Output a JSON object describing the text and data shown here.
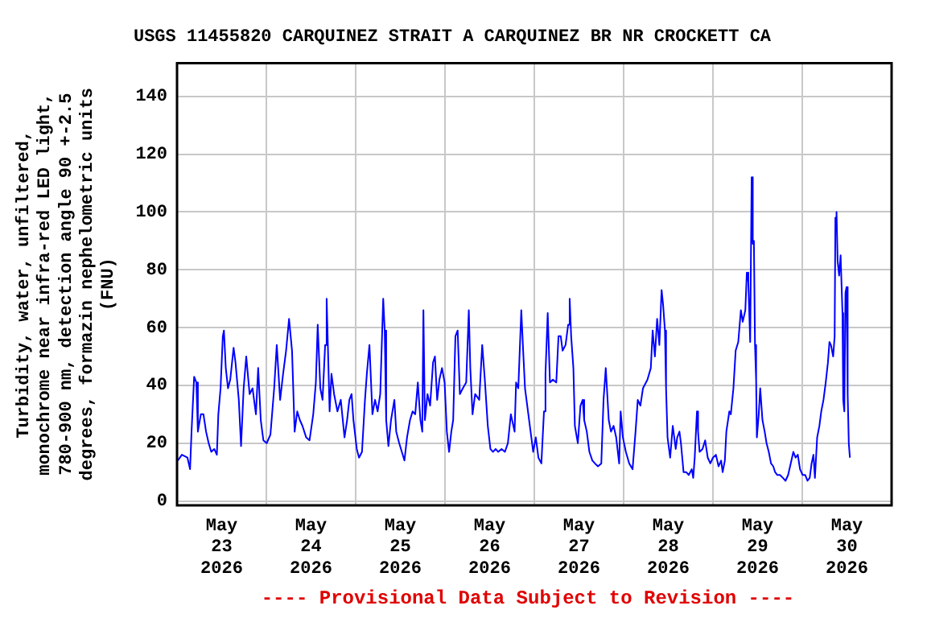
{
  "chart_data": {
    "type": "line",
    "title": "USGS 11455820 CARQUINEZ STRAIT A CARQUINEZ BR NR CROCKETT CA",
    "ylabel": "Turbidity, water, unfiltered, monochrome near infra-red LED light, 780-900 nm, detection angle 90 +-2.5 degrees, formazin nephelometric units (FNU)",
    "xlim": [
      "2026-05-23T00:00",
      "2026-05-31T00:00"
    ],
    "xticks": [
      {
        "value": "2026-05-23T00:00",
        "label": null
      },
      {
        "value": "2026-05-23T12:00",
        "label": "May 23 2026"
      },
      {
        "value": "2026-05-24T00:00",
        "label": null
      },
      {
        "value": "2026-05-24T12:00",
        "label": "May 24 2026"
      },
      {
        "value": "2026-05-25T00:00",
        "label": null
      },
      {
        "value": "2026-05-25T12:00",
        "label": "May 25 2026"
      },
      {
        "value": "2026-05-26T00:00",
        "label": null
      },
      {
        "value": "2026-05-26T12:00",
        "label": "May 26 2026"
      },
      {
        "value": "2026-05-27T00:00",
        "label": null
      },
      {
        "value": "2026-05-27T12:00",
        "label": "May 27 2026"
      },
      {
        "value": "2026-05-28T00:00",
        "label": null
      },
      {
        "value": "2026-05-28T12:00",
        "label": "May 28 2026"
      },
      {
        "value": "2026-05-29T00:00",
        "label": null
      },
      {
        "value": "2026-05-29T12:00",
        "label": "May 29 2026"
      },
      {
        "value": "2026-05-30T00:00",
        "label": null
      },
      {
        "value": "2026-05-30T12:00",
        "label": "May 30 2026"
      },
      {
        "value": "2026-05-31T00:00",
        "label": null
      }
    ],
    "ylim": [
      -1.5,
      151.5
    ],
    "yticks": [
      0,
      20,
      40,
      60,
      80,
      100,
      120,
      140
    ],
    "grid": true,
    "annotations": [
      "---- Provisional Data Subject to Revision ----"
    ],
    "series": [
      {
        "color": "#0000ff",
        "x": [
          "2026-05-23T00:12",
          "2026-05-23T01:18",
          "2026-05-23T02:48",
          "2026-05-23T03:30",
          "2026-05-23T03:54",
          "2026-05-23T04:36",
          "2026-05-23T05:12",
          "2026-05-23T05:36",
          "2026-05-23T06:24",
          "2026-05-23T07:06",
          "2026-05-23T07:48",
          "2026-05-23T08:30",
          "2026-05-23T09:12",
          "2026-05-23T10:00",
          "2026-05-23T10:42",
          "2026-05-23T11:06",
          "2026-05-23T11:42",
          "2026-05-23T12:18",
          "2026-05-23T12:36",
          "2026-05-23T13:06",
          "2026-05-23T13:42",
          "2026-05-23T14:18",
          "2026-05-23T15:12",
          "2026-05-23T15:42",
          "2026-05-23T16:36",
          "2026-05-23T17:12",
          "2026-05-23T17:54",
          "2026-05-23T18:36",
          "2026-05-23T19:30",
          "2026-05-23T20:18",
          "2026-05-23T21:12",
          "2026-05-23T21:48",
          "2026-05-23T22:30",
          "2026-05-23T23:12",
          "2026-05-24T00:06",
          "2026-05-24T01:06",
          "2026-05-24T02:06",
          "2026-05-24T02:48",
          "2026-05-24T03:42",
          "2026-05-24T04:30",
          "2026-05-24T05:18",
          "2026-05-24T06:06",
          "2026-05-24T06:54",
          "2026-05-24T07:36",
          "2026-05-24T08:18",
          "2026-05-24T09:00",
          "2026-05-24T09:42",
          "2026-05-24T10:42",
          "2026-05-24T11:36",
          "2026-05-24T12:36",
          "2026-05-24T13:18",
          "2026-05-24T13:48",
          "2026-05-24T14:30",
          "2026-05-24T15:06",
          "2026-05-24T15:48",
          "2026-05-24T16:12",
          "2026-05-24T17:00",
          "2026-05-24T17:30",
          "2026-05-24T18:12",
          "2026-05-24T19:06",
          "2026-05-24T20:00",
          "2026-05-24T21:00",
          "2026-05-24T21:42",
          "2026-05-24T22:18",
          "2026-05-24T22:54",
          "2026-05-24T23:24",
          "2026-05-25T00:18",
          "2026-05-25T00:54",
          "2026-05-25T01:42",
          "2026-05-25T02:30",
          "2026-05-25T03:00",
          "2026-05-25T03:42",
          "2026-05-25T04:30",
          "2026-05-25T05:12",
          "2026-05-25T05:54",
          "2026-05-25T06:36",
          "2026-05-25T07:24",
          "2026-05-25T07:48",
          "2026-05-25T08:12",
          "2026-05-25T08:48",
          "2026-05-25T09:30",
          "2026-05-25T10:24",
          "2026-05-25T10:54",
          "2026-05-25T11:42",
          "2026-05-25T12:24",
          "2026-05-25T13:06",
          "2026-05-25T13:48",
          "2026-05-25T14:36",
          "2026-05-25T15:18",
          "2026-05-25T16:00",
          "2026-05-25T16:42",
          "2026-05-25T17:24",
          "2026-05-25T17:54",
          "2026-05-25T18:12",
          "2026-05-25T18:36",
          "2026-05-25T19:18",
          "2026-05-25T20:00",
          "2026-05-25T20:48",
          "2026-05-25T21:18",
          "2026-05-25T21:54",
          "2026-05-25T22:30",
          "2026-05-25T23:12",
          "2026-05-25T23:54",
          "2026-05-26T00:30",
          "2026-05-26T01:06",
          "2026-05-26T01:42",
          "2026-05-26T02:12",
          "2026-05-26T02:48",
          "2026-05-26T03:24",
          "2026-05-26T04:00",
          "2026-05-26T04:48",
          "2026-05-26T05:42",
          "2026-05-26T06:24",
          "2026-05-26T06:48",
          "2026-05-26T07:24",
          "2026-05-26T08:06",
          "2026-05-26T09:12",
          "2026-05-26T10:00",
          "2026-05-26T10:42",
          "2026-05-26T11:30",
          "2026-05-26T12:12",
          "2026-05-26T12:54",
          "2026-05-26T13:36",
          "2026-05-26T14:18",
          "2026-05-26T15:12",
          "2026-05-26T16:06",
          "2026-05-26T16:54",
          "2026-05-26T17:42",
          "2026-05-26T18:42",
          "2026-05-26T19:06",
          "2026-05-26T19:42",
          "2026-05-26T20:30",
          "2026-05-26T21:00",
          "2026-05-26T21:30",
          "2026-05-26T22:18",
          "2026-05-26T23:00",
          "2026-05-26T23:42",
          "2026-05-27T00:24",
          "2026-05-27T01:06",
          "2026-05-27T01:54",
          "2026-05-27T02:36",
          "2026-05-27T03:00",
          "2026-05-27T03:36",
          "2026-05-27T04:12",
          "2026-05-27T05:00",
          "2026-05-27T05:54",
          "2026-05-27T06:30",
          "2026-05-27T07:06",
          "2026-05-27T07:36",
          "2026-05-27T08:24",
          "2026-05-27T09:06",
          "2026-05-27T09:30",
          "2026-05-27T09:54",
          "2026-05-27T10:30",
          "2026-05-27T10:54",
          "2026-05-27T11:42",
          "2026-05-27T12:24",
          "2026-05-27T13:00",
          "2026-05-27T13:24",
          "2026-05-27T14:06",
          "2026-05-27T14:48",
          "2026-05-27T15:36",
          "2026-05-27T16:18",
          "2026-05-27T17:06",
          "2026-05-27T18:00",
          "2026-05-27T18:36",
          "2026-05-27T19:12",
          "2026-05-27T19:36",
          "2026-05-27T20:00",
          "2026-05-27T20:36",
          "2026-05-27T21:18",
          "2026-05-27T22:00",
          "2026-05-27T22:48",
          "2026-05-27T23:12",
          "2026-05-27T23:48",
          "2026-05-28T00:36",
          "2026-05-28T01:30",
          "2026-05-28T02:24",
          "2026-05-28T03:12",
          "2026-05-28T03:48",
          "2026-05-28T04:30",
          "2026-05-28T05:12",
          "2026-05-28T06:24",
          "2026-05-28T07:18",
          "2026-05-28T07:48",
          "2026-05-28T08:24",
          "2026-05-28T09:00",
          "2026-05-28T09:36",
          "2026-05-28T10:12",
          "2026-05-28T10:36",
          "2026-05-28T11:06",
          "2026-05-28T11:24",
          "2026-05-28T11:48",
          "2026-05-28T12:30",
          "2026-05-28T13:12",
          "2026-05-28T14:00",
          "2026-05-28T14:24",
          "2026-05-28T15:00",
          "2026-05-28T15:24",
          "2026-05-28T16:06",
          "2026-05-28T16:48",
          "2026-05-28T17:30",
          "2026-05-28T18:18",
          "2026-05-28T18:42",
          "2026-05-28T19:06",
          "2026-05-28T19:24",
          "2026-05-28T19:42",
          "2026-05-28T20:00",
          "2026-05-28T20:24",
          "2026-05-28T21:12",
          "2026-05-28T21:54",
          "2026-05-28T22:36",
          "2026-05-28T23:18",
          "2026-05-29T00:00",
          "2026-05-29T00:48",
          "2026-05-29T01:30",
          "2026-05-29T02:12",
          "2026-05-29T02:36",
          "2026-05-29T03:12",
          "2026-05-29T03:36",
          "2026-05-29T04:24",
          "2026-05-29T04:48",
          "2026-05-29T05:30",
          "2026-05-29T06:06",
          "2026-05-29T06:48",
          "2026-05-29T07:30",
          "2026-05-29T08:00",
          "2026-05-29T08:42",
          "2026-05-29T09:06",
          "2026-05-29T09:30",
          "2026-05-29T10:00",
          "2026-05-29T10:24",
          "2026-05-29T10:42",
          "2026-05-29T11:00",
          "2026-05-29T11:18",
          "2026-05-29T11:36",
          "2026-05-29T11:48",
          "2026-05-29T12:18",
          "2026-05-29T12:42",
          "2026-05-29T13:18",
          "2026-05-29T13:54",
          "2026-05-29T14:24",
          "2026-05-29T15:00",
          "2026-05-29T15:36",
          "2026-05-29T16:12",
          "2026-05-29T16:42",
          "2026-05-29T17:18",
          "2026-05-29T18:00",
          "2026-05-29T18:48",
          "2026-05-29T19:30",
          "2026-05-29T20:12",
          "2026-05-29T20:54",
          "2026-05-29T21:36",
          "2026-05-29T22:12",
          "2026-05-29T22:48",
          "2026-05-29T23:24",
          "2026-05-30T00:06",
          "2026-05-30T00:48",
          "2026-05-30T01:24",
          "2026-05-30T02:00",
          "2026-05-30T02:30",
          "2026-05-30T03:00",
          "2026-05-30T03:24",
          "2026-05-30T04:00",
          "2026-05-30T04:36",
          "2026-05-30T05:06",
          "2026-05-30T05:42",
          "2026-05-30T06:18",
          "2026-05-30T06:54",
          "2026-05-30T07:18",
          "2026-05-30T07:42",
          "2026-05-30T08:18",
          "2026-05-30T08:42",
          "2026-05-30T08:54",
          "2026-05-30T09:12",
          "2026-05-30T09:30",
          "2026-05-30T09:54",
          "2026-05-30T10:18",
          "2026-05-30T10:48",
          "2026-05-30T11:00",
          "2026-05-30T11:18",
          "2026-05-30T11:36",
          "2026-05-30T11:54",
          "2026-05-30T12:12",
          "2026-05-30T12:30",
          "2026-05-30T12:48"
        ],
        "values": [
          14,
          16,
          15,
          11,
          24,
          43,
          41,
          24,
          30,
          30,
          24,
          20,
          17,
          18,
          16,
          30,
          39,
          57,
          59,
          46,
          39,
          42,
          53,
          48,
          35,
          19,
          39,
          50,
          37,
          39,
          30,
          46,
          28,
          21,
          20,
          23,
          39,
          54,
          35,
          44,
          52,
          63,
          52,
          24,
          31,
          28,
          26,
          22,
          21,
          30,
          41,
          61,
          39,
          35,
          54,
          70,
          31,
          44,
          37,
          31,
          35,
          22,
          28,
          35,
          37,
          28,
          18,
          15,
          17,
          35,
          44,
          54,
          30,
          35,
          31,
          37,
          70,
          59,
          28,
          19,
          28,
          35,
          24,
          20,
          17,
          14,
          22,
          28,
          31,
          30,
          41,
          28,
          24,
          66,
          28,
          37,
          33,
          48,
          50,
          35,
          42,
          46,
          41,
          24,
          17,
          24,
          28,
          57,
          59,
          37,
          39,
          41,
          66,
          46,
          30,
          37,
          35,
          54,
          42,
          26,
          18,
          17,
          18,
          17,
          18,
          17,
          20,
          30,
          24,
          41,
          39,
          66,
          52,
          39,
          31,
          24,
          17,
          22,
          15,
          13,
          31,
          44,
          65,
          41,
          42,
          41,
          57,
          57,
          52,
          54,
          61,
          70,
          57,
          46,
          26,
          20,
          33,
          35,
          28,
          24,
          17,
          14,
          13,
          12,
          13,
          35,
          46,
          37,
          28,
          24,
          26,
          22,
          13,
          31,
          22,
          17,
          13,
          11,
          24,
          35,
          33,
          39,
          42,
          46,
          59,
          50,
          63,
          54,
          73,
          68,
          59,
          39,
          22,
          15,
          26,
          18,
          22,
          24,
          20,
          10,
          10,
          9,
          11,
          8,
          15,
          23,
          31,
          24,
          17,
          18,
          21,
          15,
          13,
          15,
          16,
          12,
          14,
          10,
          14,
          24,
          31,
          30,
          39,
          52,
          55,
          66,
          62,
          66,
          79,
          76,
          55,
          112,
          89,
          90,
          54,
          42,
          22,
          30,
          39,
          28,
          24,
          20,
          17,
          13,
          12,
          10,
          9,
          9,
          8,
          7,
          9,
          13,
          17,
          15,
          16,
          11,
          9,
          9,
          7,
          8,
          13,
          16,
          8,
          22,
          26,
          31,
          35,
          41,
          48,
          55,
          54,
          50,
          57,
          98,
          100,
          83,
          78,
          85,
          65,
          35,
          31,
          72,
          74,
          37,
          20,
          15
        ]
      }
    ]
  }
}
